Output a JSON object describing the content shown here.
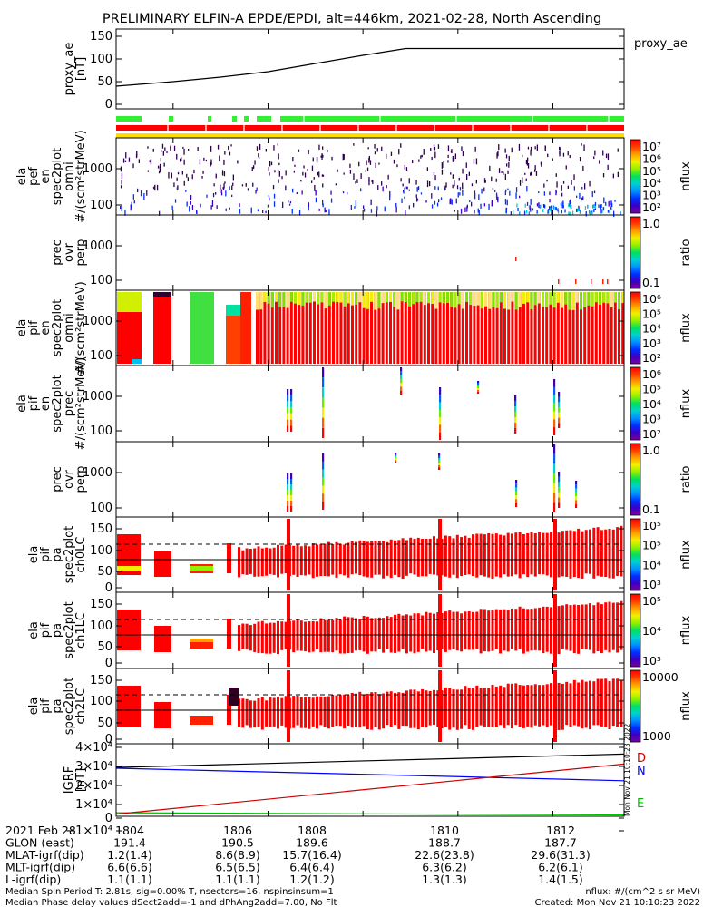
{
  "title": "PRELIMINARY ELFIN-A EPDE/EPDI, alt=446km, 2021-02-28, North Ascending",
  "panels": [
    {
      "ylabel_lines": [
        "proxy_ae",
        "[nT]"
      ],
      "right_label": "proxy_ae",
      "ticks": [
        "150",
        "100",
        "50",
        "0"
      ]
    },
    {
      "ylabel_lines": [
        "ela",
        "pef",
        "en",
        "spec2plot",
        "omni",
        "#/(scm²strMeV)"
      ],
      "ticks": [
        "1000",
        "100"
      ],
      "cbar_label": "nflux",
      "cbar_ticks": [
        "10⁷",
        "10⁶",
        "10⁵",
        "10⁴",
        "10³",
        "10²"
      ]
    },
    {
      "ylabel_lines": [
        "prec",
        "ovr",
        "perp"
      ],
      "ticks": [
        "1000",
        "100"
      ],
      "cbar_label": "ratio",
      "cbar_ticks": [
        "1.0",
        "0.1"
      ]
    },
    {
      "ylabel_lines": [
        "ela",
        "pif",
        "en",
        "spec2plot",
        "omni",
        "#/(scm²strMeV)"
      ],
      "ticks": [
        "1000",
        "100"
      ],
      "cbar_label": "nflux",
      "cbar_ticks": [
        "10⁶",
        "10⁵",
        "10⁴",
        "10³",
        "10²"
      ]
    },
    {
      "ylabel_lines": [
        "ela",
        "pif",
        "en",
        "spec2plot",
        "prec",
        "#/(scm²strMeV)"
      ],
      "ticks": [
        "1000",
        "100"
      ],
      "cbar_label": "nflux",
      "cbar_ticks": [
        "10⁶",
        "10⁵",
        "10⁴",
        "10³",
        "10²"
      ]
    },
    {
      "ylabel_lines": [
        "prec",
        "ovr",
        "perp"
      ],
      "ticks": [
        "1000",
        "100"
      ],
      "cbar_label": "ratio",
      "cbar_ticks": [
        "1.0",
        "0.1"
      ]
    },
    {
      "ylabel_lines": [
        "ela",
        "pif",
        "pa",
        "spec2plot",
        "ch0LC"
      ],
      "ticks": [
        "150",
        "100",
        "50",
        "0"
      ],
      "cbar_label": "nflux",
      "cbar_ticks": [
        "10⁵",
        "10⁵",
        "10⁴",
        "10³"
      ]
    },
    {
      "ylabel_lines": [
        "ela",
        "pif",
        "pa",
        "spec2plot",
        "ch1LC"
      ],
      "ticks": [
        "150",
        "100",
        "50",
        "0"
      ],
      "cbar_label": "nflux",
      "cbar_ticks": [
        "10⁵",
        "10⁴",
        "10³"
      ]
    },
    {
      "ylabel_lines": [
        "ela",
        "pif",
        "pa",
        "spec2plot",
        "ch2LC"
      ],
      "ticks": [
        "150",
        "100",
        "50",
        "0"
      ],
      "cbar_label": "nflux",
      "cbar_ticks": [
        "10000",
        "1000"
      ]
    },
    {
      "ylabel_lines": [
        "IGRF",
        "[nT]"
      ],
      "ticks": [
        "4×10⁴",
        "3×10⁴",
        "2×10⁴",
        "1×10⁴",
        "0",
        "−1×10⁴"
      ],
      "line_labels": [
        "D",
        "N",
        "E"
      ]
    }
  ],
  "chart_data": {
    "type": "line",
    "title": "PRELIMINARY ELFIN-A EPDE/EPDI, alt=446km, 2021-02-28, North Ascending",
    "x_ticks": [
      "1804",
      "1806",
      "1808",
      "1810",
      "1812"
    ],
    "x_tick_values": [
      1804,
      1806,
      1808,
      1810,
      1812
    ],
    "xlim": [
      1802.8,
      1813.5
    ],
    "proxy_ae": {
      "ylim": [
        0,
        150
      ],
      "x": [
        1802.8,
        1804.0,
        1805.0,
        1806.0,
        1807.0,
        1808.0,
        1808.9,
        1810.0,
        1811.0,
        1812.0,
        1813.5
      ],
      "y": [
        40,
        50,
        60,
        72,
        90,
        108,
        123,
        123,
        123,
        123,
        123
      ]
    },
    "igrf": {
      "ylim": [
        -10000,
        40000
      ],
      "series": [
        {
          "name": "D",
          "color": "#000000",
          "x": [
            1802.8,
            1813.5
          ],
          "y": [
            28000,
            36000
          ]
        },
        {
          "name": "N",
          "color": "#0000ff",
          "x": [
            1802.8,
            1813.5
          ],
          "y": [
            27500,
            20000
          ]
        },
        {
          "name": "E",
          "color": "#00c000",
          "x": [
            1802.8,
            1813.5
          ],
          "y": [
            800,
            -500
          ]
        },
        {
          "name": "",
          "color": "#cc0000",
          "x": [
            1802.8,
            1813.5
          ],
          "y": [
            0,
            30000
          ]
        }
      ]
    }
  },
  "footer": {
    "rows": [
      {
        "label": "2021 Feb 28",
        "values": [
          "1804",
          "1806",
          "1808",
          "1810",
          "1812"
        ]
      },
      {
        "label": "GLON (east)",
        "values": [
          "191.4",
          "190.5",
          "189.6",
          "188.7",
          "187.7"
        ]
      },
      {
        "label": "MLAT-igrf(dip)",
        "values": [
          "1.2(1.4)",
          "8.6(8.9)",
          "15.7(16.4)",
          "22.6(23.8)",
          "29.6(31.3)"
        ]
      },
      {
        "label": "MLT-igrf(dip)",
        "values": [
          "6.6(6.6)",
          "6.5(6.5)",
          "6.4(6.4)",
          "6.3(6.2)",
          "6.2(6.1)"
        ]
      },
      {
        "label": "L-igrf(dip)",
        "values": [
          "1.1(1.1)",
          "1.1(1.1)",
          "1.2(1.2)",
          "1.3(1.3)",
          "1.4(1.5)"
        ]
      }
    ],
    "note1": "Median Spin Period T: 2.81s, sig=0.00% T, nsectors=16, nspinsinsum=1",
    "note2": "Median Phase delay values dSect2add=-1 and dPhAng2add=7.00, No Flt",
    "nflux_units": "nflux: #/(cm^2 s sr MeV)",
    "created": "Created: Mon Nov 21 10:10:23 2022",
    "vertical_stamp": "Mon Nov 21 10:10:23 2022"
  },
  "colors": {
    "red": "#ff0000",
    "green": "#33ee33",
    "yellow": "#ffdd00",
    "axis": "#000000"
  }
}
